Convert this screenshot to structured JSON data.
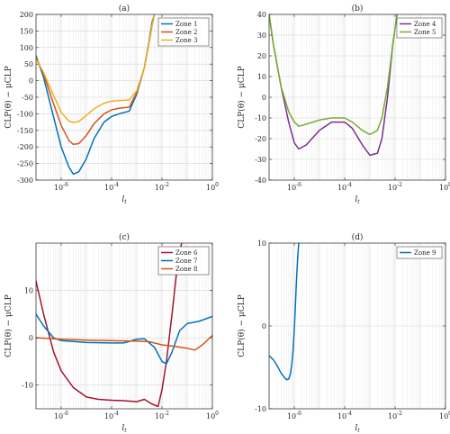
{
  "figure": {
    "panels": [
      {
        "title": "(a)",
        "ylabel": "CLP(θ) − μCLP",
        "xlabel": "l_t"
      },
      {
        "title": "(b)",
        "ylabel": "CLP(θ) − μCLP",
        "xlabel": "l_t"
      },
      {
        "title": "(c)",
        "ylabel": "CLP(θ) − μCLP",
        "xlabel": "l_t"
      },
      {
        "title": "(d)",
        "ylabel": "CLP(θ) − μCLP",
        "xlabel": "l_t"
      }
    ]
  },
  "chart_data": [
    {
      "type": "line",
      "title": "(a)",
      "xlabel": "l_t",
      "ylabel": "CLP(θ) − μCLP",
      "xscale": "log",
      "xlim": [
        1e-07,
        1
      ],
      "ylim": [
        -300,
        200
      ],
      "yticks": [
        -300,
        -250,
        -200,
        -150,
        -100,
        -50,
        0,
        50,
        100,
        150,
        200
      ],
      "xticks": [
        "10^-6",
        "10^-4",
        "10^-2",
        "10^0"
      ],
      "grid": true,
      "legend": "top-right",
      "series": [
        {
          "name": "Zone 1",
          "color": "#0072BD",
          "x": [
            1e-07,
            2e-07,
            5e-07,
            1e-06,
            2e-06,
            3e-06,
            5e-06,
            1e-05,
            2e-05,
            5e-05,
            0.0001,
            0.0002,
            0.0005,
            0.001,
            0.002,
            0.003,
            0.004,
            0.005
          ],
          "y": [
            75,
            10,
            -110,
            -200,
            -260,
            -282,
            -275,
            -235,
            -175,
            -125,
            -108,
            -100,
            -92,
            -40,
            40,
            115,
            175,
            200
          ]
        },
        {
          "name": "Zone 2",
          "color": "#D95319",
          "x": [
            1e-07,
            2e-07,
            5e-07,
            1e-06,
            2e-06,
            3e-06,
            5e-06,
            1e-05,
            2e-05,
            5e-05,
            0.0001,
            0.0002,
            0.0005,
            0.001,
            0.002,
            0.003,
            0.004,
            0.005
          ],
          "y": [
            70,
            20,
            -70,
            -135,
            -180,
            -192,
            -190,
            -165,
            -130,
            -100,
            -88,
            -83,
            -80,
            -35,
            40,
            110,
            165,
            200
          ]
        },
        {
          "name": "Zone 3",
          "color": "#EDB120",
          "x": [
            1e-07,
            2e-07,
            5e-07,
            1e-06,
            2e-06,
            3e-06,
            5e-06,
            1e-05,
            2e-05,
            5e-05,
            0.0001,
            0.0002,
            0.0005,
            0.001,
            0.002,
            0.003,
            0.004,
            0.005
          ],
          "y": [
            65,
            25,
            -45,
            -95,
            -122,
            -126,
            -123,
            -105,
            -85,
            -68,
            -62,
            -60,
            -58,
            -30,
            40,
            110,
            165,
            200
          ]
        }
      ]
    },
    {
      "type": "line",
      "title": "(b)",
      "xlabel": "l_t",
      "ylabel": "CLP(θ) − μCLP",
      "xscale": "log",
      "xlim": [
        1e-07,
        1
      ],
      "ylim": [
        -40,
        40
      ],
      "yticks": [
        -40,
        -30,
        -20,
        -10,
        0,
        10,
        20,
        30,
        40
      ],
      "xticks": [
        "10^-6",
        "10^-4",
        "10^-2",
        "10^0"
      ],
      "grid": true,
      "legend": "top-right",
      "series": [
        {
          "name": "Zone 4",
          "color": "#7E2F8E",
          "x": [
            1e-07,
            1.5e-07,
            3e-07,
            6e-07,
            1e-06,
            1.5e-06,
            3e-06,
            1e-05,
            3e-05,
            0.0001,
            0.0002,
            0.0005,
            0.001,
            0.002,
            0.003,
            0.005,
            0.008,
            0.012
          ],
          "y": [
            40,
            25,
            5,
            -12,
            -22,
            -25,
            -23,
            -16,
            -12,
            -12,
            -15,
            -23,
            -28,
            -27,
            -20,
            0,
            25,
            40
          ]
        },
        {
          "name": "Zone 5",
          "color": "#77AC30",
          "x": [
            1e-07,
            1.5e-07,
            3e-07,
            6e-07,
            1e-06,
            1.5e-06,
            3e-06,
            1e-05,
            3e-05,
            0.0001,
            0.0002,
            0.0005,
            0.001,
            0.002,
            0.003,
            0.005,
            0.008,
            0.012
          ],
          "y": [
            40,
            25,
            5,
            -7,
            -12,
            -14,
            -13,
            -11,
            -10,
            -10,
            -12,
            -16,
            -18,
            -16,
            -10,
            5,
            25,
            40
          ]
        }
      ]
    },
    {
      "type": "line",
      "title": "(c)",
      "xlabel": "l_t",
      "ylabel": "CLP(θ) − μCLP",
      "xscale": "log",
      "xlim": [
        1e-07,
        1
      ],
      "ylim": [
        -15,
        20
      ],
      "yticks": [
        -10,
        0,
        10
      ],
      "xticks": [
        "10^-6",
        "10^-4",
        "10^-2",
        "10^0"
      ],
      "grid": true,
      "legend": "top-right",
      "series": [
        {
          "name": "Zone 6",
          "color": "#A2142F",
          "x": [
            1e-07,
            2e-07,
            5e-07,
            1e-06,
            3e-06,
            1e-05,
            3e-05,
            0.0001,
            0.0003,
            0.001,
            0.002,
            0.004,
            0.007,
            0.01,
            0.015,
            0.025,
            0.04,
            0.06
          ],
          "y": [
            12,
            5,
            -3,
            -7,
            -10.5,
            -12.5,
            -13,
            -13.2,
            -13.3,
            -13.5,
            -13,
            -14,
            -14.5,
            -11,
            -5,
            5,
            15,
            20
          ]
        },
        {
          "name": "Zone 7",
          "color": "#0072BD",
          "x": [
            1e-07,
            2e-07,
            5e-07,
            1e-06,
            1e-05,
            0.0001,
            0.0003,
            0.001,
            0.002,
            0.005,
            0.01,
            0.015,
            0.025,
            0.05,
            0.1,
            0.3,
            1
          ],
          "y": [
            5,
            2.5,
            0,
            -0.6,
            -1,
            -1.1,
            -1.1,
            -0.3,
            -0.2,
            -2,
            -5,
            -5.5,
            -3,
            1.5,
            3,
            3.5,
            4.5
          ]
        },
        {
          "name": "Zone 8",
          "color": "#D95319",
          "x": [
            1e-07,
            1e-06,
            1e-05,
            0.0001,
            0.001,
            0.003,
            0.01,
            0.03,
            0.1,
            0.2,
            0.4,
            1
          ],
          "y": [
            0,
            -0.3,
            -0.5,
            -0.6,
            -0.7,
            -0.8,
            -1.5,
            -1.8,
            -2.2,
            -2.6,
            -1.5,
            0.5
          ]
        }
      ]
    },
    {
      "type": "line",
      "title": "(d)",
      "xlabel": "l_t",
      "ylabel": "CLP(θ) − μCLP",
      "xscale": "log",
      "xlim": [
        1e-07,
        1
      ],
      "ylim": [
        -10,
        10
      ],
      "yticks": [
        -10,
        0,
        10
      ],
      "xticks": [
        "10^-6",
        "10^-4",
        "10^-2",
        "10^0"
      ],
      "grid": true,
      "legend": "top-right",
      "series": [
        {
          "name": "Zone 9",
          "color": "#0072BD",
          "x": [
            1e-07,
            1.5e-07,
            2e-07,
            3e-07,
            4e-07,
            5e-07,
            6e-07,
            7e-07,
            8e-07,
            9e-07,
            1e-06,
            1.1e-06,
            1.2e-06,
            1.35e-06,
            1.5e-06
          ],
          "y": [
            -3.6,
            -4.1,
            -4.7,
            -5.7,
            -6.2,
            -6.5,
            -6.4,
            -5.8,
            -4.6,
            -2.8,
            -0.4,
            2.3,
            5,
            8,
            10
          ]
        }
      ]
    }
  ]
}
